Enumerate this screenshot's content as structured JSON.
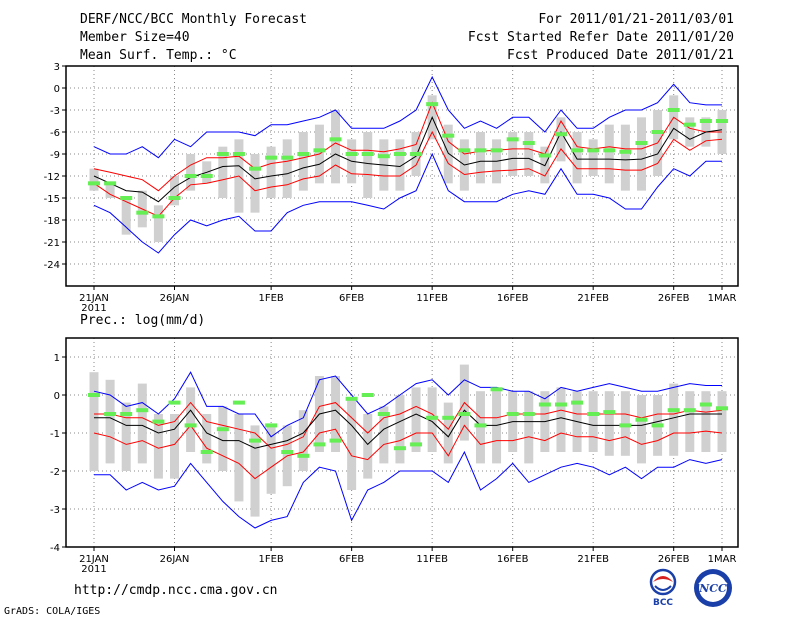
{
  "header": {
    "title": "DERF/NCC/BCC Monthly Forecast",
    "member_size": "Member Size=40",
    "variable1": "Mean Surf. Temp.: °C",
    "period": "For 2011/01/21-2011/03/01",
    "started": "Fcst Started Refer Date 2011/01/20",
    "produced": "Fcst Produced Date 2011/01/21"
  },
  "footer": {
    "url": "http://cmdp.ncc.cma.gov.cn",
    "credit": "GrADS: COLA/IGES",
    "logo1_text": "BCC",
    "logo2_text": "NCC"
  },
  "colors": {
    "box": "#d0d0d0",
    "mean_marker": "#66ee55",
    "envelope": "#0000ff",
    "spread": "#ff0000",
    "ensemble_mean": "#000000",
    "grid": "#888888"
  },
  "chart_data": [
    {
      "type": "line",
      "name": "temperature",
      "title": "Mean Surf. Temp.: °C",
      "x": [
        "21JAN",
        "22JAN",
        "23JAN",
        "24JAN",
        "25JAN",
        "26JAN",
        "27JAN",
        "28JAN",
        "29JAN",
        "30JAN",
        "31JAN",
        "1FEB",
        "2FEB",
        "3FEB",
        "4FEB",
        "5FEB",
        "6FEB",
        "7FEB",
        "8FEB",
        "9FEB",
        "10FEB",
        "11FEB",
        "12FEB",
        "13FEB",
        "14FEB",
        "15FEB",
        "16FEB",
        "17FEB",
        "18FEB",
        "19FEB",
        "20FEB",
        "21FEB",
        "22FEB",
        "23FEB",
        "24FEB",
        "25FEB",
        "26FEB",
        "27FEB",
        "28FEB",
        "1MAR"
      ],
      "xticks": [
        "21JAN",
        "26JAN",
        "1FEB",
        "6FEB",
        "11FEB",
        "16FEB",
        "21FEB",
        "26FEB",
        "1MAR"
      ],
      "xtick_year": "2011",
      "ylim": [
        -27,
        3
      ],
      "yticks": [
        3,
        0,
        -3,
        -6,
        -9,
        -12,
        -15,
        -18,
        -21,
        -24
      ],
      "series": [
        {
          "name": "max",
          "values": [
            -8,
            -9,
            -9,
            -8,
            -9.5,
            -7,
            -8,
            -6,
            -6,
            -6,
            -6.5,
            -5,
            -5,
            -4.5,
            -4,
            -3,
            -5.5,
            -5.5,
            -5.5,
            -4.5,
            -3,
            1.5,
            -3,
            -5.5,
            -4.5,
            -5.5,
            -4,
            -4,
            -6,
            -3,
            -5.5,
            -5.5,
            -4,
            -3,
            -3,
            -2,
            0.5,
            -2,
            -2.3,
            -2.3
          ]
        },
        {
          "name": "upper",
          "values": [
            -11,
            -11.5,
            -12,
            -12.5,
            -14,
            -12,
            -10.5,
            -9.5,
            -9.5,
            -9.3,
            -11,
            -10.3,
            -10,
            -9.5,
            -9,
            -7.5,
            -8.5,
            -8.5,
            -8.7,
            -8.3,
            -7.7,
            -2,
            -7.3,
            -9,
            -8.6,
            -8.5,
            -8.3,
            -8.3,
            -9,
            -4.5,
            -8,
            -8.3,
            -8,
            -8.3,
            -8.3,
            -7.5,
            -4,
            -5.5,
            -6,
            -6
          ]
        },
        {
          "name": "mean",
          "values": [
            -12,
            -13,
            -14,
            -14.2,
            -15.5,
            -13.5,
            -12.2,
            -11.5,
            -10.7,
            -10.6,
            -12.4,
            -12,
            -11.7,
            -10.9,
            -10.4,
            -9,
            -10,
            -10.3,
            -10.5,
            -10.7,
            -9.3,
            -4,
            -8.9,
            -10.5,
            -10,
            -10,
            -9.6,
            -9.6,
            -10.6,
            -6,
            -9.7,
            -9.7,
            -9.7,
            -9.8,
            -9.7,
            -9,
            -5.5,
            -7,
            -6,
            -5.7
          ]
        },
        {
          "name": "lower",
          "values": [
            -13,
            -14.5,
            -15.5,
            -16.5,
            -17.5,
            -15,
            -13.2,
            -13,
            -12.5,
            -12,
            -14,
            -13.5,
            -13.2,
            -12.4,
            -12,
            -10.5,
            -11.7,
            -11.8,
            -12,
            -12,
            -10.5,
            -6,
            -10.3,
            -11.8,
            -11.5,
            -11.3,
            -11.2,
            -11,
            -12,
            -8.3,
            -11,
            -11,
            -11,
            -11.2,
            -11.2,
            -10.3,
            -7,
            -8.5,
            -7.2,
            -7
          ]
        },
        {
          "name": "min",
          "values": [
            -16,
            -17,
            -19,
            -21,
            -22.5,
            -20,
            -18,
            -18.8,
            -18,
            -17.5,
            -19.5,
            -19.5,
            -17,
            -16,
            -15.5,
            -15.5,
            -15.5,
            -16,
            -16.5,
            -15,
            -14,
            -9,
            -14,
            -15.5,
            -15.5,
            -15.5,
            -14.5,
            -14,
            -14.5,
            -11,
            -14.5,
            -14.5,
            -15,
            -16.5,
            -16.5,
            -13.5,
            -11,
            -12,
            -10,
            -10
          ]
        },
        {
          "name": "box_top",
          "values": [
            -11,
            -13,
            -15,
            -14,
            -16,
            -12,
            -9,
            -10,
            -8,
            -7,
            -9,
            -8,
            -7,
            -6,
            -5,
            -3,
            -7,
            -6,
            -7,
            -7,
            -6,
            -1,
            -5,
            -7,
            -6,
            -7,
            -6,
            -6,
            -8,
            -4,
            -6,
            -7,
            -5,
            -5,
            -4,
            -3,
            -1,
            -4,
            -4,
            -3
          ]
        },
        {
          "name": "box_bottom",
          "values": [
            -14,
            -15,
            -20,
            -19,
            -21,
            -16,
            -14,
            -13,
            -15,
            -17,
            -17,
            -15,
            -15,
            -14,
            -13,
            -13,
            -13,
            -15,
            -14,
            -14,
            -12,
            -7,
            -13,
            -14,
            -13,
            -13,
            -12,
            -12,
            -13,
            -10,
            -13,
            -12,
            -13,
            -14,
            -14,
            -12,
            -7,
            -8,
            -8,
            -9
          ]
        },
        {
          "name": "marker",
          "values": [
            -13,
            -13,
            -15,
            -17,
            -17.5,
            -15,
            -12,
            -12,
            -9,
            -9,
            -11,
            -9.5,
            -9.5,
            -9,
            -8.5,
            -7,
            -9,
            -9,
            -9.3,
            -9,
            -9,
            -2.2,
            -6.5,
            -8.5,
            -8.5,
            -8.5,
            -7,
            -7.5,
            -9.2,
            -6.3,
            -8.5,
            -8.5,
            -8.5,
            -8.7,
            -7.5,
            -6,
            -3,
            -5,
            -4.5,
            -4.5
          ]
        }
      ]
    },
    {
      "type": "line",
      "name": "precipitation",
      "title": "Prec.: log(mm/d)",
      "x": [
        "21JAN",
        "22JAN",
        "23JAN",
        "24JAN",
        "25JAN",
        "26JAN",
        "27JAN",
        "28JAN",
        "29JAN",
        "30JAN",
        "31JAN",
        "1FEB",
        "2FEB",
        "3FEB",
        "4FEB",
        "5FEB",
        "6FEB",
        "7FEB",
        "8FEB",
        "9FEB",
        "10FEB",
        "11FEB",
        "12FEB",
        "13FEB",
        "14FEB",
        "15FEB",
        "16FEB",
        "17FEB",
        "18FEB",
        "19FEB",
        "20FEB",
        "21FEB",
        "22FEB",
        "23FEB",
        "24FEB",
        "25FEB",
        "26FEB",
        "27FEB",
        "28FEB",
        "1MAR"
      ],
      "xticks": [
        "21JAN",
        "26JAN",
        "1FEB",
        "6FEB",
        "11FEB",
        "16FEB",
        "21FEB",
        "26FEB",
        "1MAR"
      ],
      "xtick_year": "2011",
      "ylim": [
        -4,
        1.5
      ],
      "yticks": [
        1,
        0,
        -1,
        -2,
        -3,
        -4
      ],
      "series": [
        {
          "name": "max",
          "values": [
            0.1,
            0,
            -0.3,
            -0.2,
            -0.5,
            -0.1,
            0.6,
            -0.3,
            -0.3,
            -0.5,
            -0.5,
            -1.1,
            -0.8,
            -0.6,
            0.4,
            0.5,
            0,
            -0.5,
            -0.3,
            0,
            0.3,
            0.4,
            0,
            0.4,
            0.2,
            0.2,
            0.1,
            0.1,
            -0.1,
            0.2,
            0.1,
            0.2,
            0.3,
            0.2,
            0.1,
            0.1,
            0.2,
            0.3,
            0.25,
            0.25
          ]
        },
        {
          "name": "upper",
          "values": [
            -0.5,
            -0.5,
            -0.6,
            -0.6,
            -0.8,
            -0.7,
            -0.2,
            -0.7,
            -0.8,
            -0.9,
            -1,
            -1.4,
            -1.3,
            -1.1,
            -0.3,
            -0.2,
            -0.6,
            -1,
            -0.6,
            -0.5,
            -0.3,
            -0.5,
            -0.9,
            -0.2,
            -0.6,
            -0.6,
            -0.5,
            -0.5,
            -0.5,
            -0.4,
            -0.5,
            -0.5,
            -0.5,
            -0.5,
            -0.6,
            -0.5,
            -0.5,
            -0.4,
            -0.45,
            -0.4
          ]
        },
        {
          "name": "mean",
          "values": [
            -0.6,
            -0.6,
            -0.8,
            -0.8,
            -1.0,
            -0.9,
            -0.4,
            -1.0,
            -1.2,
            -1.2,
            -1.4,
            -1.3,
            -1.2,
            -1.0,
            -0.5,
            -0.4,
            -0.8,
            -1.3,
            -0.9,
            -0.7,
            -0.5,
            -0.7,
            -1.1,
            -0.4,
            -0.8,
            -0.8,
            -0.7,
            -0.7,
            -0.7,
            -0.6,
            -0.7,
            -0.8,
            -0.8,
            -0.8,
            -0.8,
            -0.7,
            -0.6,
            -0.5,
            -0.5,
            -0.5
          ]
        },
        {
          "name": "lower",
          "values": [
            -1.0,
            -1.1,
            -1.3,
            -1.2,
            -1.4,
            -1.3,
            -0.8,
            -1.4,
            -1.6,
            -1.8,
            -2.2,
            -1.9,
            -1.6,
            -1.5,
            -1.0,
            -0.9,
            -1.6,
            -1.7,
            -1.3,
            -1.2,
            -1.0,
            -1.0,
            -1.6,
            -0.8,
            -1.3,
            -1.2,
            -1.2,
            -1.1,
            -1.2,
            -1.0,
            -1.1,
            -1.1,
            -1.2,
            -1.1,
            -1.3,
            -1.2,
            -1.0,
            -1.0,
            -0.95,
            -1.0
          ]
        },
        {
          "name": "min",
          "values": [
            -2.1,
            -2.1,
            -2.5,
            -2.3,
            -2.5,
            -2.4,
            -1.8,
            -2.3,
            -2.8,
            -3.2,
            -3.5,
            -3.3,
            -3.2,
            -2.3,
            -1.9,
            -2.0,
            -3.3,
            -2.5,
            -2.3,
            -2.0,
            -2.0,
            -2.0,
            -2.3,
            -1.5,
            -2.5,
            -2.2,
            -1.8,
            -2.3,
            -2.1,
            -1.9,
            -1.8,
            -1.9,
            -2.1,
            -1.9,
            -2.2,
            -1.9,
            -1.9,
            -1.7,
            -1.8,
            -1.7
          ]
        },
        {
          "name": "box_top",
          "values": [
            0.6,
            0.4,
            -0.2,
            0.3,
            -0.5,
            -0.5,
            0.2,
            -0.5,
            -0.3,
            -0.5,
            -0.8,
            -0.8,
            -0.8,
            -0.4,
            0.5,
            0.5,
            -0.1,
            -0.5,
            -0.3,
            0,
            0.2,
            0.2,
            -0.2,
            0.8,
            0.1,
            0.1,
            0.1,
            0.1,
            0.1,
            0.2,
            0.1,
            0.1,
            0.1,
            0.1,
            0,
            0,
            0.3,
            0.1,
            0.1,
            0.1
          ]
        },
        {
          "name": "box_bottom",
          "values": [
            -2.0,
            -1.8,
            -2.0,
            -1.8,
            -2.2,
            -2.2,
            -1.5,
            -1.8,
            -2.0,
            -2.8,
            -3.2,
            -2.6,
            -2.4,
            -2.0,
            -1.5,
            -1.5,
            -2.5,
            -2.2,
            -1.8,
            -1.8,
            -1.5,
            -1.5,
            -1.8,
            -1.2,
            -1.8,
            -1.8,
            -1.5,
            -1.8,
            -1.5,
            -1.5,
            -1.5,
            -1.5,
            -1.6,
            -1.6,
            -1.8,
            -1.6,
            -1.6,
            -1.5,
            -1.5,
            -1.5
          ]
        },
        {
          "name": "marker",
          "values": [
            0,
            -0.5,
            -0.5,
            -0.4,
            -0.7,
            -0.2,
            -0.8,
            -1.5,
            -0.9,
            -0.2,
            -1.2,
            -0.8,
            -1.5,
            -1.6,
            -1.3,
            -1.2,
            -0.1,
            0,
            -0.5,
            -1.4,
            -1.3,
            -0.6,
            -0.6,
            -0.5,
            -0.8,
            0.15,
            -0.5,
            -0.5,
            -0.25,
            -0.25,
            -0.2,
            -0.5,
            -0.45,
            -0.8,
            -0.65,
            -0.8,
            -0.4,
            -0.4,
            -0.25,
            -0.35
          ]
        }
      ]
    }
  ]
}
